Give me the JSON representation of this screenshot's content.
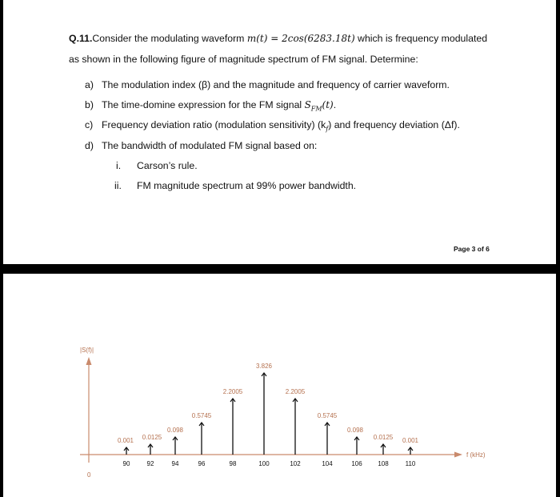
{
  "question": {
    "number": "Q.11.",
    "line1_pre": "Consider the modulating waveform ",
    "line1_formula": "m(t) = 2cos(6283.18t)",
    "line1_post": " which is frequency modulated",
    "line2": "as shown in the following figure of magnitude spectrum of FM signal. Determine:",
    "items": [
      {
        "marker": "a)",
        "text": "The modulation index (β) and the magnitude and frequency of carrier waveform."
      },
      {
        "marker": "b)",
        "text_pre": "The time-domine expression for the FM signal ",
        "formula": "S",
        "sub": "FM",
        "formula_post": "(t)",
        "text_post": "."
      },
      {
        "marker": "c)",
        "text": "Frequency deviation ratio (modulation sensitivity) (k",
        "sub": "f",
        "text_post": ") and frequency deviation (Δf)."
      },
      {
        "marker": "d)",
        "text": "The bandwidth of modulated FM signal based on:"
      }
    ],
    "subitems": [
      {
        "marker": "i.",
        "text": "Carson’s rule."
      },
      {
        "marker": "ii.",
        "text": "FM magnitude spectrum at 99% power bandwidth."
      }
    ]
  },
  "page_footer": "Page 3 of 6",
  "colors": {
    "axis": "#c98a6c",
    "value_label": "#b5714f",
    "impulse": "#111111",
    "frame": "#000000"
  },
  "chart_data": {
    "type": "stem",
    "ylabel": "|S(f)|",
    "xlabel": "f (kHz)",
    "origin_label": "0",
    "x": [
      90,
      92,
      94,
      96,
      98,
      100,
      102,
      104,
      106,
      108,
      110
    ],
    "x_tick_labels": [
      "90",
      "92",
      "94",
      "96",
      "98",
      "100",
      "102",
      "104",
      "106",
      "108",
      "110"
    ],
    "values": [
      0.001,
      0.0125,
      0.098,
      0.5745,
      2.2005,
      3.826,
      2.2005,
      0.5745,
      0.098,
      0.0125,
      0.001
    ],
    "value_labels": [
      "0.001",
      "0.0125",
      "0.098",
      "0.5745",
      "2.2005",
      "3.826",
      "2.2005",
      "0.5745",
      "0.098",
      "0.0125",
      "0.001"
    ]
  }
}
